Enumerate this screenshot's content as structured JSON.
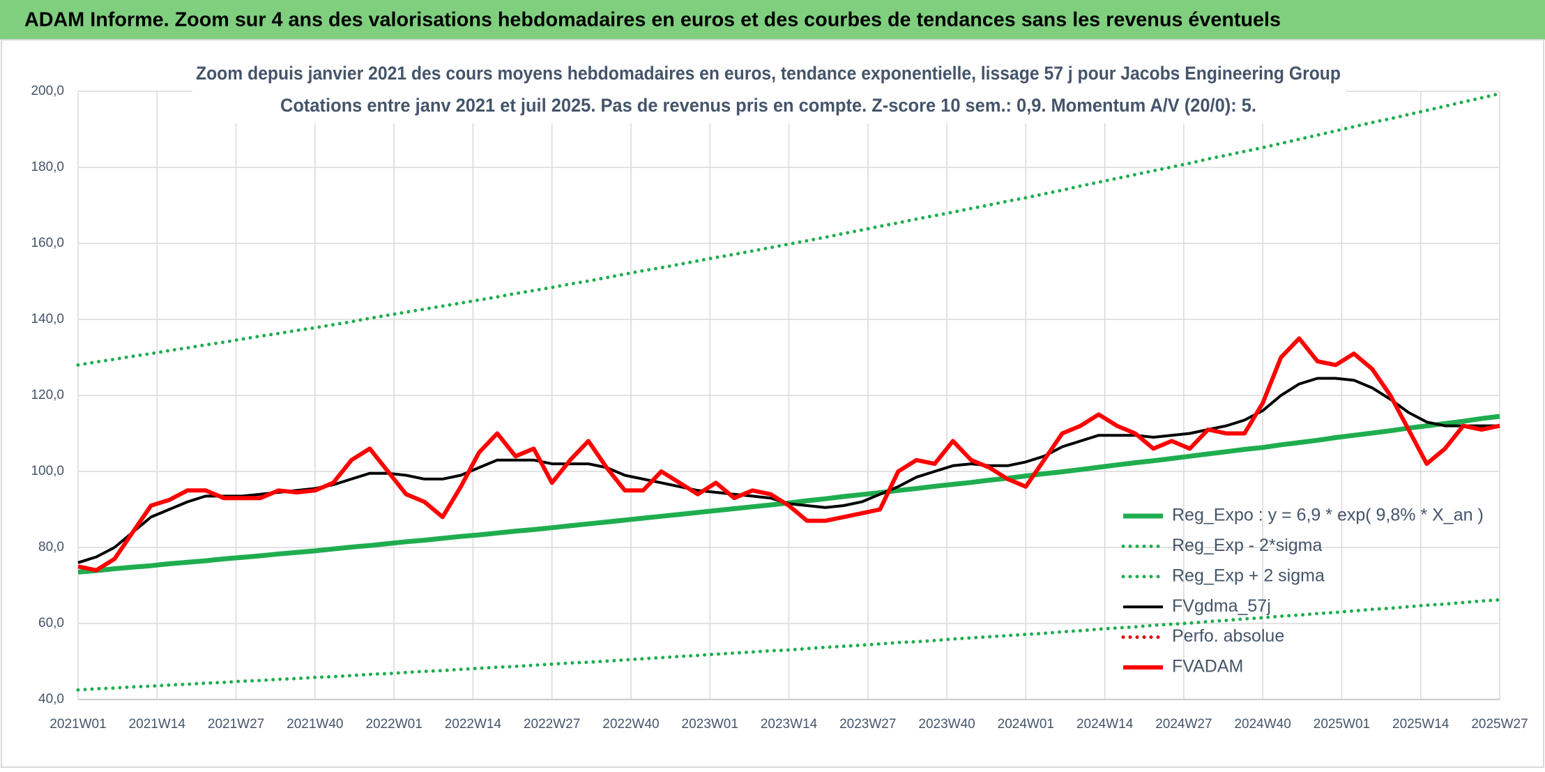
{
  "header": {
    "title": "ADAM Informe. Zoom sur 4 ans des valorisations hebdomadaires en euros et des courbes de tendances sans les revenus éventuels"
  },
  "chart_data": {
    "type": "line",
    "title": "Zoom depuis janvier 2021 des cours moyens hebdomadaires en euros, tendance exponentielle, lissage 57 j pour Jacobs Engineering Group",
    "subtitle": "Cotations entre janv 2021 et juil 2025. Pas de revenus pris en compte. Z-score 10 sem.: 0,9. Momentum A/V (20/0): 5.",
    "x": [
      0,
      3,
      6,
      9,
      12,
      15,
      18,
      21,
      24,
      27,
      30,
      33,
      36,
      39,
      42,
      45,
      48,
      51,
      54,
      57,
      60,
      63,
      66,
      69,
      72,
      75,
      78,
      81,
      84,
      87,
      90,
      93,
      96,
      99,
      102,
      105,
      108,
      111,
      114,
      117,
      120,
      123,
      126,
      129,
      132,
      135,
      138,
      141,
      144,
      147,
      150,
      153,
      156,
      159,
      162,
      165,
      168,
      171,
      174,
      177,
      180,
      183,
      186,
      189,
      192,
      195,
      198,
      201,
      204,
      207,
      210,
      213,
      216,
      219,
      222,
      225,
      228,
      231,
      234
    ],
    "xlim": [
      0,
      234
    ],
    "xticks": [
      {
        "value": 0,
        "label": "2021W01"
      },
      {
        "value": 13,
        "label": "2021W14"
      },
      {
        "value": 26,
        "label": "2021W27"
      },
      {
        "value": 39,
        "label": "2021W40"
      },
      {
        "value": 52,
        "label": "2022W01"
      },
      {
        "value": 65,
        "label": "2022W14"
      },
      {
        "value": 78,
        "label": "2022W27"
      },
      {
        "value": 91,
        "label": "2022W40"
      },
      {
        "value": 104,
        "label": "2023W01"
      },
      {
        "value": 117,
        "label": "2023W14"
      },
      {
        "value": 130,
        "label": "2023W27"
      },
      {
        "value": 143,
        "label": "2023W40"
      },
      {
        "value": 156,
        "label": "2024W01"
      },
      {
        "value": 169,
        "label": "2024W14"
      },
      {
        "value": 182,
        "label": "2024W27"
      },
      {
        "value": 195,
        "label": "2024W40"
      },
      {
        "value": 208,
        "label": "2025W01"
      },
      {
        "value": 221,
        "label": "2025W14"
      },
      {
        "value": 234,
        "label": "2025W27"
      }
    ],
    "ylim": [
      40,
      200
    ],
    "yticks": [
      {
        "value": 40,
        "label": "40,0"
      },
      {
        "value": 60,
        "label": "60,0"
      },
      {
        "value": 80,
        "label": "80,0"
      },
      {
        "value": 100,
        "label": "100,0"
      },
      {
        "value": 120,
        "label": "120,0"
      },
      {
        "value": 140,
        "label": "140,0"
      },
      {
        "value": 160,
        "label": "160,0"
      },
      {
        "value": 180,
        "label": "180,0"
      },
      {
        "value": 200,
        "label": "200,0"
      }
    ],
    "grid": true,
    "legend": "lower right",
    "series": [
      {
        "name": "Reg_Expo : y = 6,9 * exp( 9,8% *  X_an )",
        "color": "#1fad4f",
        "style": "solid",
        "values": [
          73.5,
          73.9,
          74.4,
          74.8,
          75.2,
          75.7,
          76.1,
          76.5,
          77.0,
          77.4,
          77.8,
          78.3,
          78.7,
          79.1,
          79.6,
          80.1,
          80.5,
          81.0,
          81.5,
          81.9,
          82.4,
          82.9,
          83.3,
          83.8,
          84.3,
          84.7,
          85.2,
          85.7,
          86.2,
          86.7,
          87.2,
          87.7,
          88.2,
          88.7,
          89.2,
          89.7,
          90.2,
          90.7,
          91.2,
          91.7,
          92.3,
          92.8,
          93.4,
          93.9,
          94.4,
          95.0,
          95.5,
          96.1,
          96.6,
          97.1,
          97.7,
          98.2,
          98.8,
          99.4,
          99.9,
          100.5,
          101.1,
          101.7,
          102.3,
          102.8,
          103.4,
          104.0,
          104.6,
          105.2,
          105.8,
          106.3,
          107.0,
          107.6,
          108.2,
          108.9,
          109.5,
          110.1,
          110.7,
          111.4,
          112.0,
          112.6,
          113.2,
          113.9,
          114.5
        ]
      },
      {
        "name": "Reg_Exp - 2*sigma",
        "color": "#1fad4f",
        "style": "dotted",
        "values": [
          42.5,
          42.8,
          43.0,
          43.3,
          43.5,
          43.8,
          44.0,
          44.3,
          44.5,
          44.8,
          45.0,
          45.3,
          45.5,
          45.8,
          46.0,
          46.3,
          46.6,
          46.8,
          47.1,
          47.4,
          47.6,
          47.9,
          48.2,
          48.5,
          48.7,
          49.0,
          49.3,
          49.6,
          49.8,
          50.1,
          50.4,
          50.7,
          51.0,
          51.3,
          51.6,
          51.9,
          52.2,
          52.5,
          52.8,
          53.0,
          53.4,
          53.7,
          54.0,
          54.3,
          54.6,
          55.0,
          55.2,
          55.5,
          55.9,
          56.2,
          56.5,
          56.8,
          57.1,
          57.4,
          57.8,
          58.1,
          58.5,
          58.8,
          59.1,
          59.5,
          59.8,
          60.1,
          60.5,
          60.8,
          61.2,
          61.5,
          61.9,
          62.2,
          62.6,
          62.9,
          63.3,
          63.7,
          64.0,
          64.4,
          64.8,
          65.1,
          65.5,
          65.9,
          66.2
        ]
      },
      {
        "name": "Reg_Exp + 2 sigma",
        "color": "#1fad4f",
        "style": "dotted",
        "values": [
          128.0,
          128.8,
          129.5,
          130.3,
          131.0,
          131.8,
          132.5,
          133.3,
          134.0,
          134.8,
          135.6,
          136.3,
          137.1,
          137.8,
          138.6,
          139.4,
          140.3,
          141.1,
          141.9,
          142.7,
          143.5,
          144.3,
          145.1,
          145.9,
          146.8,
          147.6,
          148.4,
          149.3,
          150.1,
          151.0,
          151.9,
          152.8,
          153.6,
          154.5,
          155.4,
          156.3,
          157.1,
          158.0,
          158.9,
          159.8,
          160.7,
          161.6,
          162.6,
          163.5,
          164.5,
          165.4,
          166.4,
          167.3,
          168.2,
          169.2,
          170.1,
          171.1,
          172.0,
          173.0,
          174.0,
          175.1,
          176.1,
          177.1,
          178.1,
          179.1,
          180.1,
          181.1,
          182.2,
          183.2,
          184.2,
          185.2,
          186.3,
          187.4,
          188.5,
          189.6,
          190.7,
          191.8,
          192.8,
          193.9,
          195.0,
          196.1,
          197.2,
          198.3,
          199.4
        ]
      },
      {
        "name": "FVgdma_57j",
        "color": "#000000",
        "style": "solid",
        "values": [
          76,
          77.5,
          80,
          84,
          88,
          90,
          92,
          93.5,
          93.5,
          93.5,
          94,
          94.5,
          95,
          95.5,
          96.5,
          98,
          99.5,
          99.5,
          99,
          98,
          98,
          99,
          101,
          103,
          103,
          103,
          102,
          102,
          102,
          101,
          99,
          98,
          97,
          96,
          95,
          94.5,
          94,
          93.5,
          93,
          91.5,
          91,
          90.5,
          91,
          92,
          94,
          96,
          98.5,
          100,
          101.5,
          102,
          101.5,
          101.5,
          102.5,
          104,
          106.5,
          108,
          109.5,
          109.5,
          109.5,
          109,
          109.5,
          110,
          111,
          112,
          113.5,
          116,
          120,
          123,
          124.5,
          124.5,
          124,
          122,
          119,
          115.5,
          113,
          112,
          112,
          112,
          112
        ]
      },
      {
        "name": "Perfo. absolue",
        "color": "#e00000",
        "style": "dotted",
        "values": [
          null,
          null,
          null,
          null,
          null,
          null,
          null,
          null,
          null,
          null,
          null,
          null,
          null,
          null,
          null,
          null,
          null,
          null,
          null,
          null,
          null,
          null,
          null,
          null,
          null,
          null,
          null,
          null,
          null,
          null,
          null,
          null,
          null,
          null,
          null,
          null,
          null,
          null,
          null,
          null,
          null,
          null,
          null,
          null,
          null,
          null,
          null,
          null,
          null,
          null,
          null,
          null,
          null,
          null,
          null,
          null,
          null,
          null,
          null,
          null,
          null,
          null,
          null,
          null,
          null,
          null,
          null,
          null,
          null,
          null,
          null,
          null,
          null,
          null,
          null,
          null,
          null,
          null,
          null
        ]
      },
      {
        "name": "FVADAM",
        "color": "#ff0000",
        "style": "solid",
        "values": [
          75,
          74,
          77,
          84,
          91,
          92.5,
          95,
          95,
          93,
          93,
          93,
          95,
          94.5,
          95,
          97,
          103,
          106,
          100,
          94,
          92,
          88,
          96,
          105,
          110,
          104,
          106,
          97,
          103,
          108,
          101,
          95,
          95,
          100,
          97,
          94,
          97,
          93,
          95,
          94,
          91,
          87,
          87,
          88,
          89,
          90,
          100,
          103,
          102,
          108,
          103,
          101,
          98,
          96,
          103,
          110,
          112,
          115,
          112,
          110,
          106,
          108,
          106,
          111,
          110,
          110,
          118,
          130,
          135,
          129,
          128,
          131,
          127,
          120,
          111,
          102,
          106,
          112,
          111,
          112
        ]
      }
    ]
  }
}
